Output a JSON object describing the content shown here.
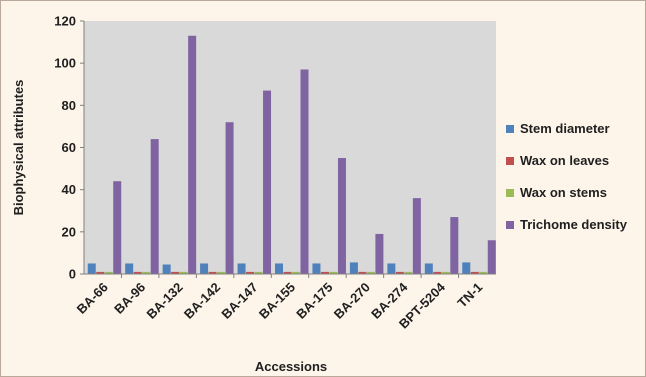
{
  "chart_data": {
    "type": "bar",
    "title": "",
    "xlabel": "Accessions",
    "ylabel": "Biophysical attributes",
    "ylim": [
      0,
      120
    ],
    "yticks": [
      0,
      20,
      40,
      60,
      80,
      100,
      120
    ],
    "grid": false,
    "legend_position": "right",
    "categories": [
      "BA-66",
      "BA-96",
      "BA-132",
      "BA-142",
      "BA-147",
      "BA-155",
      "BA-175",
      "BA-270",
      "BA-274",
      "BPT-5204",
      "TN-1"
    ],
    "series": [
      {
        "name": "Stem diameter",
        "color": "#4f81bd",
        "values": [
          5,
          5,
          4.5,
          5,
          5,
          5,
          5,
          5.5,
          5,
          5,
          5.5
        ]
      },
      {
        "name": "Wax on leaves",
        "color": "#c0504d",
        "values": [
          1,
          1,
          1,
          1,
          1,
          1,
          1,
          1,
          1,
          1,
          1
        ]
      },
      {
        "name": "Wax on stems",
        "color": "#9bbb59",
        "values": [
          1,
          1,
          1,
          1,
          1,
          1,
          1,
          1,
          1,
          1,
          1
        ]
      },
      {
        "name": "Trichome density",
        "color": "#8064a2",
        "values": [
          44,
          64,
          113,
          72,
          87,
          97,
          55,
          19,
          36,
          27,
          16
        ]
      }
    ]
  },
  "colors": {
    "plot_background": "#d9d9d9",
    "frame_background": "#fdf4ea"
  }
}
